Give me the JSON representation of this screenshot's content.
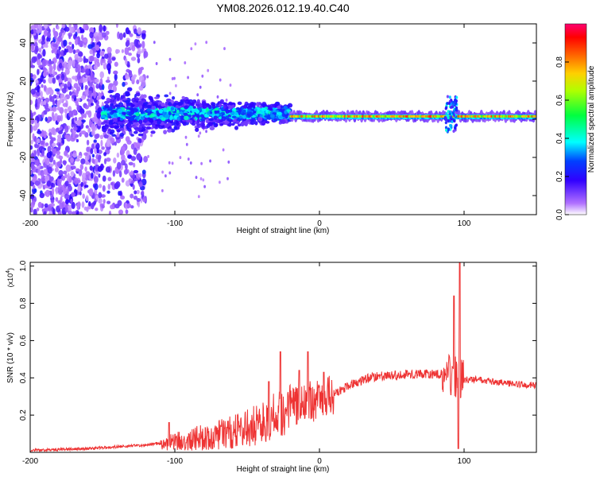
{
  "title": "YM08.2026.012.19.40.C40",
  "chart_data": [
    {
      "type": "heatmap",
      "xlabel": "Height of straight line (km)",
      "ylabel": "Frequency (Hz)",
      "xlim": [
        -200,
        150
      ],
      "ylim": [
        -50,
        50
      ],
      "xticks": [
        -200,
        -100,
        0,
        100
      ],
      "yticks": [
        -40,
        -20,
        0,
        20,
        40
      ],
      "colorbar": {
        "label": "Normalized spectral amplitude",
        "ticks": [
          0.0,
          0.2,
          0.4,
          0.6,
          0.8
        ],
        "range": [
          0,
          1
        ],
        "colors": [
          "#ffffff",
          "#8000ff",
          "#0000ff",
          "#00ffff",
          "#00ff00",
          "#ffff00",
          "#ff8000",
          "#ff0000",
          "#ff0080"
        ]
      },
      "bands": [
        {
          "x": [
            -200,
            -120
          ],
          "y": [
            -50,
            50
          ],
          "amplitude": 0.15,
          "note": "scattered noise"
        },
        {
          "x": [
            -150,
            -20
          ],
          "y": [
            -5,
            10
          ],
          "amplitude": 0.35,
          "note": "broadening signal"
        },
        {
          "x": [
            -20,
            150
          ],
          "y": [
            0,
            3
          ],
          "amplitude": 0.85,
          "note": "narrow carrier line"
        },
        {
          "x": [
            87,
            95
          ],
          "y": [
            -8,
            12
          ],
          "amplitude": 0.3,
          "note": "disturbance"
        }
      ]
    },
    {
      "type": "line",
      "xlabel": "Height of straight line (km)",
      "ylabel": "SNR (10 * v/v)",
      "scale_label": "(x10",
      "scale_exp": "4",
      "xlim": [
        -200,
        150
      ],
      "ylim": [
        0,
        1.02
      ],
      "xticks": [
        -200,
        -100,
        0,
        100
      ],
      "yticks": [
        0.2,
        0.4,
        0.6,
        0.8,
        1.0
      ],
      "ytick_labels": [
        "0.2",
        "0.4",
        "0.6",
        "0.8",
        "1.0"
      ],
      "color": "#ee3333",
      "envelope": {
        "x": [
          -200,
          -160,
          -140,
          -120,
          -100,
          -80,
          -60,
          -50,
          -40,
          -30,
          -20,
          -10,
          0,
          10,
          20,
          30,
          40,
          50,
          60,
          70,
          80,
          90,
          96,
          100,
          110,
          120,
          130,
          150
        ],
        "y": [
          0.01,
          0.02,
          0.03,
          0.04,
          0.06,
          0.08,
          0.11,
          0.13,
          0.16,
          0.2,
          0.24,
          0.27,
          0.28,
          0.31,
          0.36,
          0.39,
          0.41,
          0.41,
          0.42,
          0.42,
          0.42,
          0.42,
          0.4,
          0.39,
          0.39,
          0.38,
          0.37,
          0.36
        ]
      },
      "spikes": [
        {
          "x": -104,
          "y": 0.16
        },
        {
          "x": -68,
          "y": 0.14
        },
        {
          "x": -35,
          "y": 0.38
        },
        {
          "x": -27,
          "y": 0.54
        },
        {
          "x": -14,
          "y": 0.44
        },
        {
          "x": -8,
          "y": 0.54
        },
        {
          "x": 3,
          "y": 0.43
        },
        {
          "x": 93,
          "y": 0.84
        },
        {
          "x": 97,
          "y": 1.02
        },
        {
          "x": 96,
          "y": 0.02
        }
      ]
    }
  ]
}
